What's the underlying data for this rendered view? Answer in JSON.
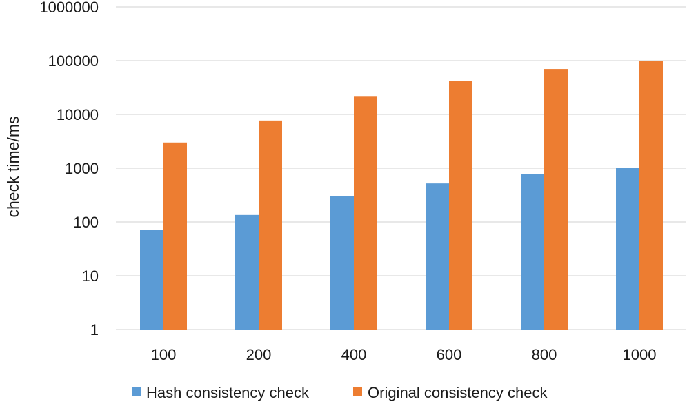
{
  "chart_data": {
    "type": "bar",
    "title": "",
    "xlabel": "",
    "ylabel": "check time/ms",
    "yscale": "log",
    "ylim": [
      1,
      1000000
    ],
    "yticks": [
      1,
      10,
      100,
      1000,
      10000,
      100000,
      1000000
    ],
    "ytick_labels": [
      "1",
      "10",
      "100",
      "1000",
      "10000",
      "100000",
      "1000000"
    ],
    "categories": [
      "100",
      "200",
      "400",
      "600",
      "800",
      "1000"
    ],
    "series": [
      {
        "name": "Hash consistency check",
        "color": "#5b9bd5",
        "values": [
          72,
          135,
          300,
          520,
          780,
          1000
        ]
      },
      {
        "name": "Original consistency check",
        "color": "#ed7d31",
        "values": [
          3000,
          7700,
          22000,
          42000,
          70000,
          100000
        ]
      }
    ],
    "grid": true,
    "legend_position": "bottom"
  }
}
